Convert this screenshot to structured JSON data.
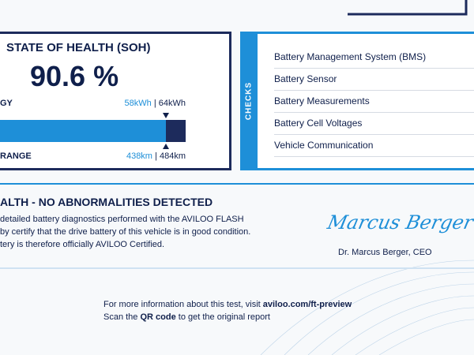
{
  "soh": {
    "title": "STATE OF HEALTH (SOH)",
    "value": "90.6 %",
    "energy": {
      "label": "GY",
      "current": "58kWh",
      "sep": "|",
      "total": "64kWh"
    },
    "range": {
      "label": "RANGE",
      "current": "438km",
      "sep": "|",
      "total": "484km"
    }
  },
  "checks": {
    "title": "CHECKS",
    "items": [
      "Battery Management System (BMS)",
      "Battery Sensor",
      "Battery Measurements",
      "Battery Cell Voltages",
      "Vehicle Communication"
    ]
  },
  "result": {
    "title": "ALTH - NO ABNORMALITIES DETECTED",
    "lines": [
      "detailed battery diagnostics performed with the AVILOO FLASH",
      "by certify that the drive battery of this vehicle is in good condition.",
      "tery is therefore officially AVILOO Certified."
    ],
    "signature": "Marcus Berger",
    "signer": "Dr. Marcus Berger, CEO"
  },
  "footer": {
    "line1": {
      "text": "For more information about this test, visit",
      "link": "aviloo.com/ft-preview"
    },
    "line2": {
      "before": "Scan the",
      "bold": "QR code",
      "after": "to get the original report"
    }
  }
}
